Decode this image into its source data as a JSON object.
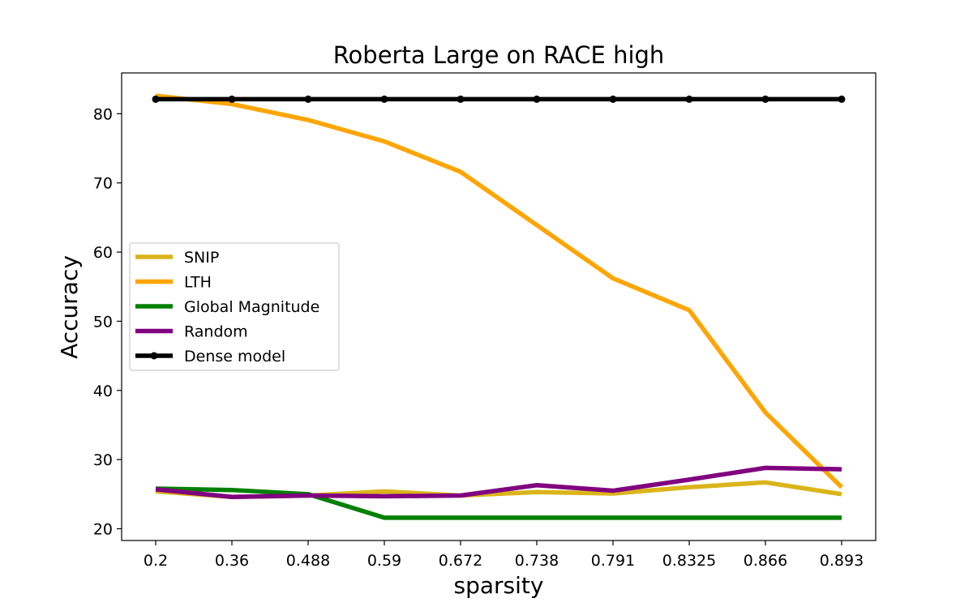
{
  "chart_data": {
    "type": "line",
    "title": "Roberta Large on RACE high",
    "xlabel": "sparsity",
    "ylabel": "Accuracy",
    "categories": [
      "0.2",
      "0.36",
      "0.488",
      "0.59",
      "0.672",
      "0.738",
      "0.791",
      "0.8325",
      "0.866",
      "0.893"
    ],
    "y_ticks": [
      "20",
      "30",
      "40",
      "50",
      "60",
      "70",
      "80"
    ],
    "ylim": [
      18.3,
      85.9
    ],
    "grid": false,
    "legend_position": "center-left",
    "series": [
      {
        "name": "SNIP",
        "color": "#DAB41A",
        "marker": "none",
        "values": [
          25.4,
          24.6,
          24.8,
          25.4,
          24.8,
          25.3,
          25.1,
          26.0,
          26.7,
          25.0
        ]
      },
      {
        "name": "LTH",
        "color": "#FFA500",
        "marker": "none",
        "values": [
          82.6,
          81.4,
          79.1,
          76.0,
          71.6,
          63.9,
          56.2,
          51.6,
          36.8,
          26.0
        ]
      },
      {
        "name": "Global Magnitude",
        "color": "#008000",
        "marker": "none",
        "values": [
          25.8,
          25.6,
          25.0,
          21.6,
          21.6,
          21.6,
          21.6,
          21.6,
          21.6,
          21.6
        ]
      },
      {
        "name": "Random",
        "color": "#800080",
        "marker": "none",
        "values": [
          25.7,
          24.6,
          24.8,
          24.7,
          24.8,
          26.3,
          25.5,
          27.1,
          28.8,
          28.6
        ]
      },
      {
        "name": "Dense model",
        "color": "#000000",
        "marker": "dot",
        "values": [
          82.1,
          82.1,
          82.1,
          82.1,
          82.1,
          82.1,
          82.1,
          82.1,
          82.1,
          82.1
        ]
      }
    ]
  }
}
